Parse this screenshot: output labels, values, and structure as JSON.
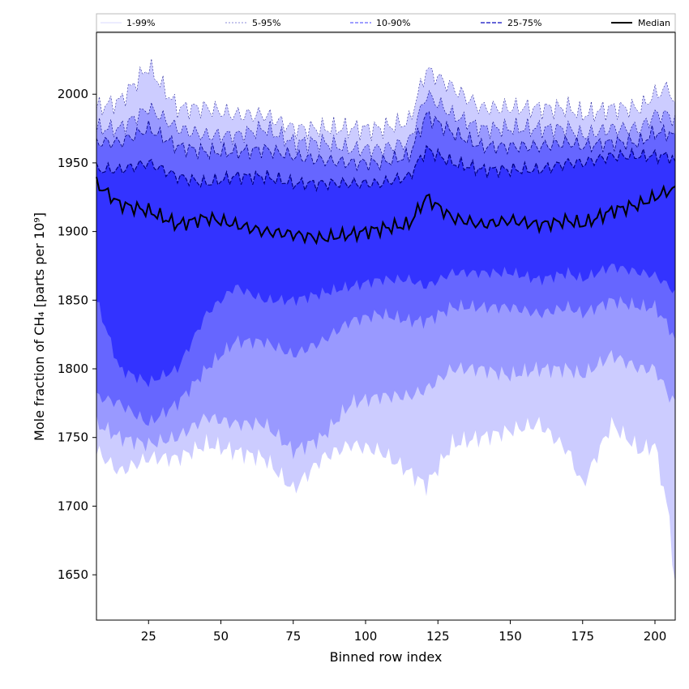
{
  "chart_data": {
    "type": "area",
    "xlabel": "Binned row index",
    "ylabel": "Mole fraction of CH₄ [parts per 10⁹]",
    "xlim": [
      7,
      207
    ],
    "ylim": [
      1617,
      2045
    ],
    "xticks": [
      25,
      50,
      75,
      100,
      125,
      150,
      175,
      200
    ],
    "yticks": [
      1650,
      1700,
      1750,
      1800,
      1850,
      1900,
      1950,
      2000
    ],
    "grid": false,
    "legend_position": "top",
    "colors": {
      "band_1_99": "#ccccff",
      "band_5_95": "#9999ff",
      "band_10_90": "#6666ff",
      "band_25_75": "#3333ff",
      "median": "#000000",
      "edge": "#000080"
    },
    "x_knots": [
      7,
      15,
      25,
      35,
      45,
      55,
      65,
      75,
      85,
      95,
      105,
      115,
      121,
      130,
      140,
      150,
      160,
      170,
      175,
      185,
      195,
      200,
      205,
      207
    ],
    "series": [
      {
        "name": "1-99%",
        "lower": [
          1740,
          1725,
          1735,
          1735,
          1745,
          1740,
          1735,
          1712,
          1735,
          1745,
          1740,
          1725,
          1715,
          1745,
          1750,
          1755,
          1760,
          1740,
          1715,
          1760,
          1740,
          1745,
          1690,
          1640
        ],
        "upper": [
          1990,
          1995,
          2020,
          1990,
          1990,
          1985,
          1985,
          1975,
          1975,
          1975,
          1975,
          1980,
          2018,
          2005,
          1990,
          1990,
          1990,
          1990,
          1985,
          1990,
          1990,
          2000,
          2005,
          1990
        ]
      },
      {
        "name": "5-95%",
        "lower": [
          1760,
          1750,
          1745,
          1750,
          1765,
          1760,
          1760,
          1740,
          1750,
          1775,
          1780,
          1780,
          1785,
          1800,
          1800,
          1795,
          1800,
          1800,
          1795,
          1810,
          1800,
          1800,
          1780,
          1775
        ],
        "upper": [
          1975,
          1975,
          1990,
          1975,
          1970,
          1970,
          1975,
          1965,
          1965,
          1960,
          1960,
          1965,
          2000,
          1985,
          1975,
          1975,
          1975,
          1975,
          1970,
          1975,
          1975,
          1985,
          1985,
          1980
        ]
      },
      {
        "name": "10-90%",
        "lower": [
          1780,
          1775,
          1760,
          1775,
          1800,
          1820,
          1820,
          1810,
          1820,
          1835,
          1840,
          1835,
          1835,
          1845,
          1845,
          1845,
          1840,
          1845,
          1840,
          1850,
          1845,
          1845,
          1830,
          1820
        ]
      },
      {
        "name": "25-75%",
        "lower": [
          1850,
          1800,
          1790,
          1800,
          1840,
          1860,
          1850,
          1850,
          1855,
          1860,
          1865,
          1865,
          1860,
          1870,
          1870,
          1870,
          1865,
          1870,
          1865,
          1875,
          1870,
          1868,
          1860,
          1855
        ],
        "upper": [
          1945,
          1945,
          1950,
          1940,
          1935,
          1940,
          1940,
          1935,
          1935,
          1935,
          1935,
          1940,
          1960,
          1950,
          1945,
          1945,
          1945,
          1950,
          1950,
          1955,
          1955,
          1955,
          1955,
          1950
        ]
      },
      {
        "name": "Median",
        "values": [
          1935,
          1920,
          1915,
          1905,
          1910,
          1905,
          1900,
          1898,
          1895,
          1898,
          1902,
          1905,
          1925,
          1910,
          1905,
          1908,
          1905,
          1908,
          1905,
          1915,
          1920,
          1925,
          1930,
          1930
        ]
      }
    ],
    "band_10_90_upper": [
      1965,
      1965,
      1975,
      1962,
      1958,
      1958,
      1960,
      1955,
      1952,
      1950,
      1950,
      1955,
      1985,
      1972,
      1962,
      1962,
      1962,
      1965,
      1962,
      1965,
      1965,
      1972,
      1972,
      1968
    ],
    "legend": [
      {
        "label": "1-99%",
        "style": "thin"
      },
      {
        "label": "5-95%",
        "style": "thin-dashed"
      },
      {
        "label": "10-90%",
        "style": "dashed"
      },
      {
        "label": "25-75%",
        "style": "dashed-bold"
      },
      {
        "label": "Median",
        "style": "solid"
      }
    ]
  }
}
